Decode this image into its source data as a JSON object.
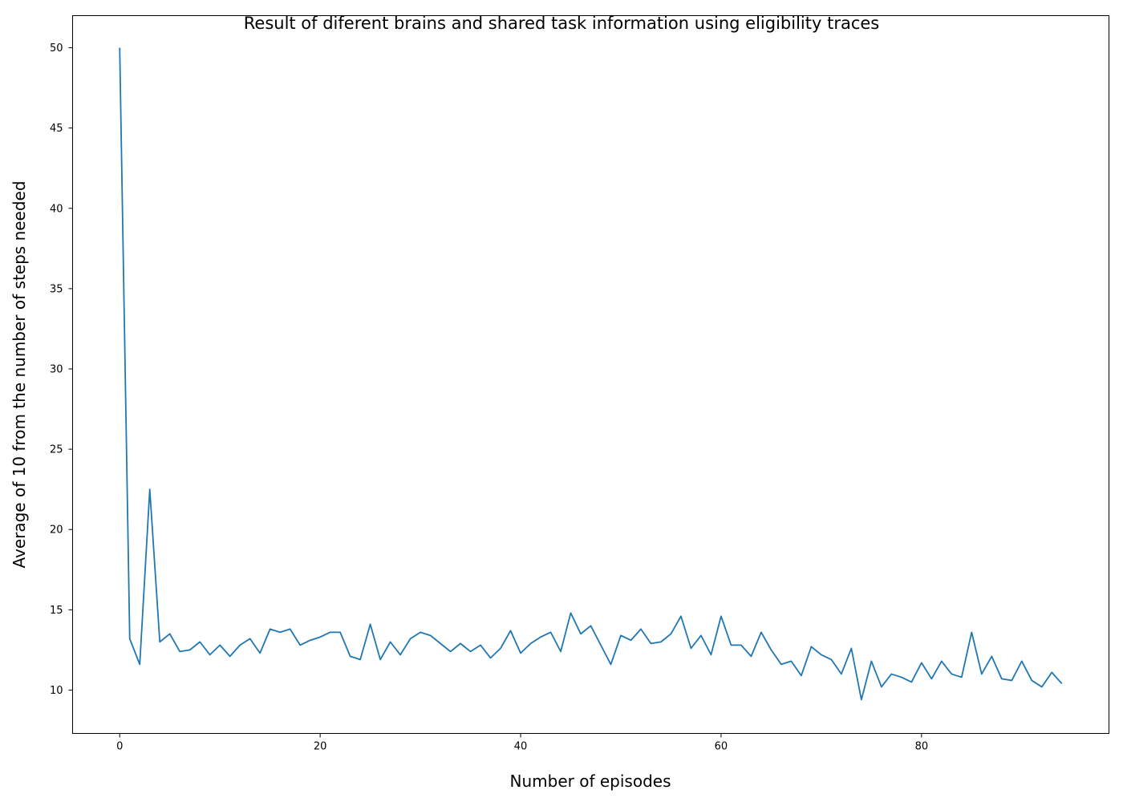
{
  "chart_data": {
    "type": "line",
    "title": "Result of diferent brains and shared task information using eligibility traces",
    "xlabel": "Number of episodes",
    "ylabel": "Average of 10 from the number of steps needed",
    "xlim": [
      -4.7,
      98.7
    ],
    "ylim": [
      7.3,
      52.0
    ],
    "xticks": [
      0,
      20,
      40,
      60,
      80
    ],
    "yticks": [
      10,
      15,
      20,
      25,
      30,
      35,
      40,
      45,
      50
    ],
    "grid": false,
    "line_color": "#1f77b4",
    "series": [
      {
        "x": [
          0,
          1,
          2,
          3,
          4,
          5,
          6,
          7,
          8,
          9,
          10,
          11,
          12,
          13,
          14,
          15,
          16,
          17,
          18,
          19,
          20,
          21,
          22,
          23,
          24,
          25,
          26,
          27,
          28,
          29,
          30,
          31,
          32,
          33,
          34,
          35,
          36,
          37,
          38,
          39,
          40,
          41,
          42,
          43,
          44,
          45,
          46,
          47,
          48,
          49,
          50,
          51,
          52,
          53,
          54,
          55,
          56,
          57,
          58,
          59,
          60,
          61,
          62,
          63,
          64,
          65,
          66,
          67,
          68,
          69,
          70,
          71,
          72,
          73,
          74,
          75,
          76,
          77,
          78,
          79,
          80,
          81,
          82,
          83,
          84,
          85,
          86,
          87,
          88,
          89,
          90,
          91,
          92,
          93,
          94
        ],
        "values": [
          50.0,
          13.2,
          11.6,
          22.5,
          13.0,
          13.5,
          12.4,
          12.5,
          13.0,
          12.2,
          12.8,
          12.1,
          12.8,
          13.2,
          12.3,
          13.8,
          13.6,
          13.8,
          12.8,
          13.1,
          13.3,
          13.6,
          13.6,
          12.1,
          11.9,
          14.1,
          11.9,
          13.0,
          12.2,
          13.2,
          13.6,
          13.4,
          12.9,
          12.4,
          12.9,
          12.4,
          12.8,
          12.0,
          12.6,
          13.7,
          12.3,
          12.9,
          13.3,
          13.6,
          12.4,
          14.8,
          13.5,
          14.0,
          12.8,
          11.6,
          13.4,
          13.1,
          13.8,
          12.9,
          13.0,
          13.5,
          14.6,
          12.6,
          13.4,
          12.2,
          14.6,
          12.8,
          12.8,
          12.1,
          13.6,
          12.5,
          11.6,
          11.8,
          10.9,
          12.7,
          12.2,
          11.9,
          11.0,
          12.6,
          9.4,
          11.8,
          10.2,
          11.0,
          10.8,
          10.5,
          11.7,
          10.7,
          11.8,
          11.0,
          10.8,
          13.6,
          11.0,
          12.1,
          10.7,
          10.6,
          11.8,
          10.6,
          10.2,
          11.1,
          10.4
        ]
      }
    ]
  }
}
